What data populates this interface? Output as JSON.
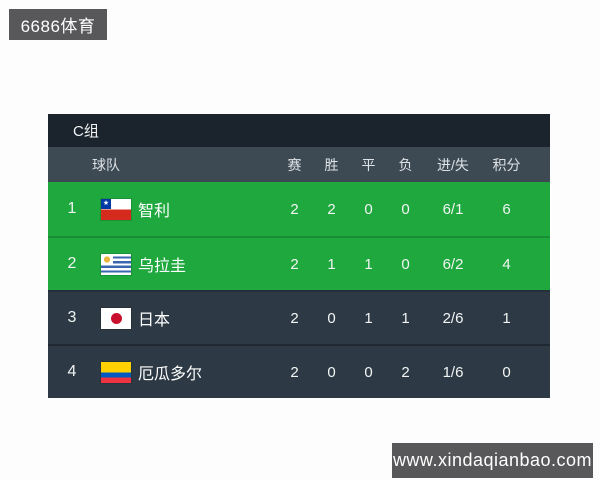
{
  "watermarks": {
    "top_left": "6686体育",
    "bottom_right": "www.xindaqianbao.com"
  },
  "standings": {
    "group_title": "C组",
    "columns": {
      "team": "球队",
      "played": "赛",
      "won": "胜",
      "drawn": "平",
      "lost": "负",
      "goals": "进/失",
      "points": "积分"
    },
    "rows": [
      {
        "rank": "1",
        "team": "智利",
        "flag": "chile",
        "played": "2",
        "won": "2",
        "drawn": "0",
        "lost": "0",
        "goals": "6/1",
        "points": "6",
        "highlight": true
      },
      {
        "rank": "2",
        "team": "乌拉圭",
        "flag": "uruguay",
        "played": "2",
        "won": "1",
        "drawn": "1",
        "lost": "0",
        "goals": "6/2",
        "points": "4",
        "highlight": true
      },
      {
        "rank": "3",
        "team": "日本",
        "flag": "japan",
        "played": "2",
        "won": "0",
        "drawn": "1",
        "lost": "1",
        "goals": "2/6",
        "points": "1",
        "highlight": false
      },
      {
        "rank": "4",
        "team": "厄瓜多尔",
        "flag": "ecuador",
        "played": "2",
        "won": "0",
        "drawn": "0",
        "lost": "2",
        "goals": "1/6",
        "points": "0",
        "highlight": false
      }
    ]
  },
  "colors": {
    "highlight_green": "#1ea83e",
    "row_dark": "#2d3944",
    "header_row": "#3d4a54",
    "title_bar": "#1b242d",
    "watermark_bg": "#58585a"
  }
}
